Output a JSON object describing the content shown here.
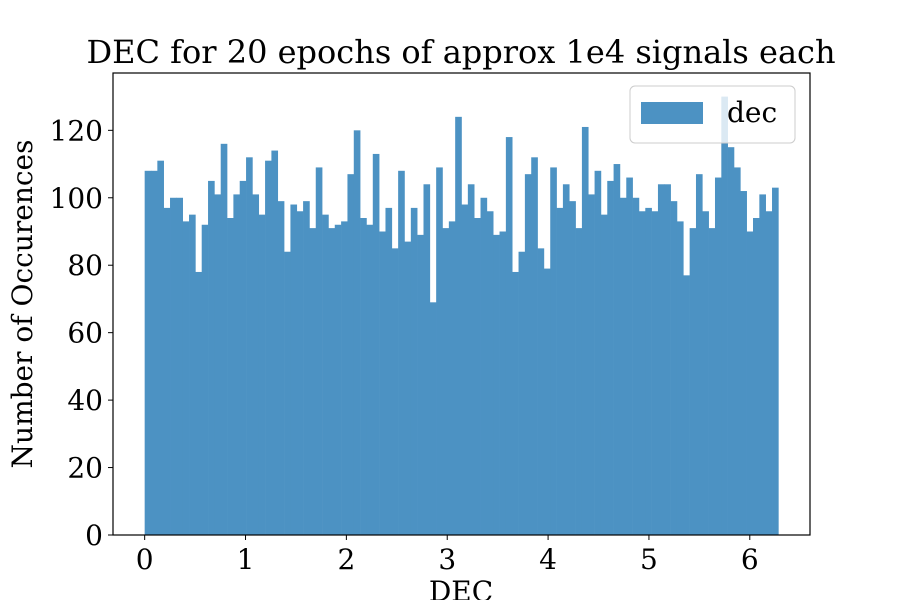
{
  "chart_data": {
    "type": "bar",
    "title": "DEC for 20 epochs of approx 1e4 signals each",
    "xlabel": "DEC",
    "ylabel": "Number of Occurences",
    "xlim": [
      -0.314,
      6.597
    ],
    "ylim": [
      0,
      137
    ],
    "x_ticks": [
      0,
      1,
      2,
      3,
      4,
      5,
      6
    ],
    "y_ticks": [
      0,
      20,
      40,
      60,
      80,
      100,
      120
    ],
    "x_tick_labels": [
      "0",
      "1",
      "2",
      "3",
      "4",
      "5",
      "6"
    ],
    "y_tick_labels": [
      "0",
      "20",
      "40",
      "60",
      "80",
      "100",
      "120"
    ],
    "bin_start": 0,
    "bin_end": 6.2832,
    "bin_count": 100,
    "series": [
      {
        "name": "dec",
        "color": "#4c92c3",
        "values": [
          108,
          108,
          111,
          97,
          100,
          100,
          93,
          95,
          78,
          92,
          105,
          101,
          116,
          94,
          101,
          105,
          112,
          101,
          95,
          111,
          114,
          99,
          84,
          98,
          96,
          99,
          91,
          109,
          95,
          91,
          92,
          93,
          107,
          120,
          94,
          92,
          113,
          90,
          97,
          85,
          108,
          87,
          97,
          89,
          104,
          69,
          109,
          91,
          93,
          124,
          98,
          104,
          94,
          100,
          96,
          89,
          90,
          118,
          78,
          84,
          107,
          112,
          85,
          79,
          109,
          97,
          104,
          99,
          91,
          121,
          101,
          108,
          95,
          105,
          110,
          100,
          106,
          100,
          96,
          97,
          96,
          104,
          104,
          99,
          93,
          77,
          91,
          107,
          96,
          91,
          106,
          130,
          115,
          109,
          102,
          90,
          94,
          101,
          96,
          103
        ]
      }
    ],
    "legend": {
      "position": "top-right",
      "entries": [
        "dec"
      ]
    },
    "grid": false
  }
}
